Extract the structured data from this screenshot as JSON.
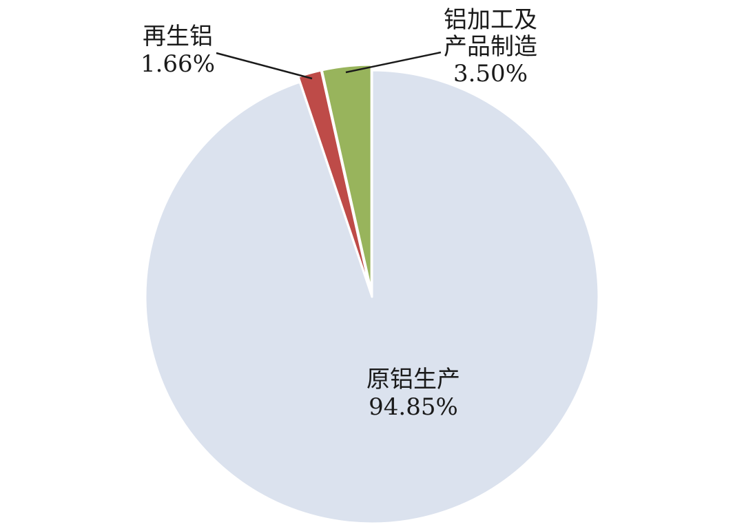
{
  "chart_data": {
    "type": "pie",
    "title": "",
    "start_angle_deg": 0,
    "direction": "clockwise",
    "slices": [
      {
        "label_lines": [
          "原铝生产"
        ],
        "value": 94.85,
        "value_text": "94.85%",
        "color": "#dbe2ee"
      },
      {
        "label_lines": [
          "再生铝"
        ],
        "value": 1.66,
        "value_text": "1.66%",
        "color": "#be4b48"
      },
      {
        "label_lines": [
          "铝加工及",
          "产品制造"
        ],
        "value": 3.5,
        "value_text": "3.50%",
        "color": "#98b45c"
      }
    ]
  }
}
